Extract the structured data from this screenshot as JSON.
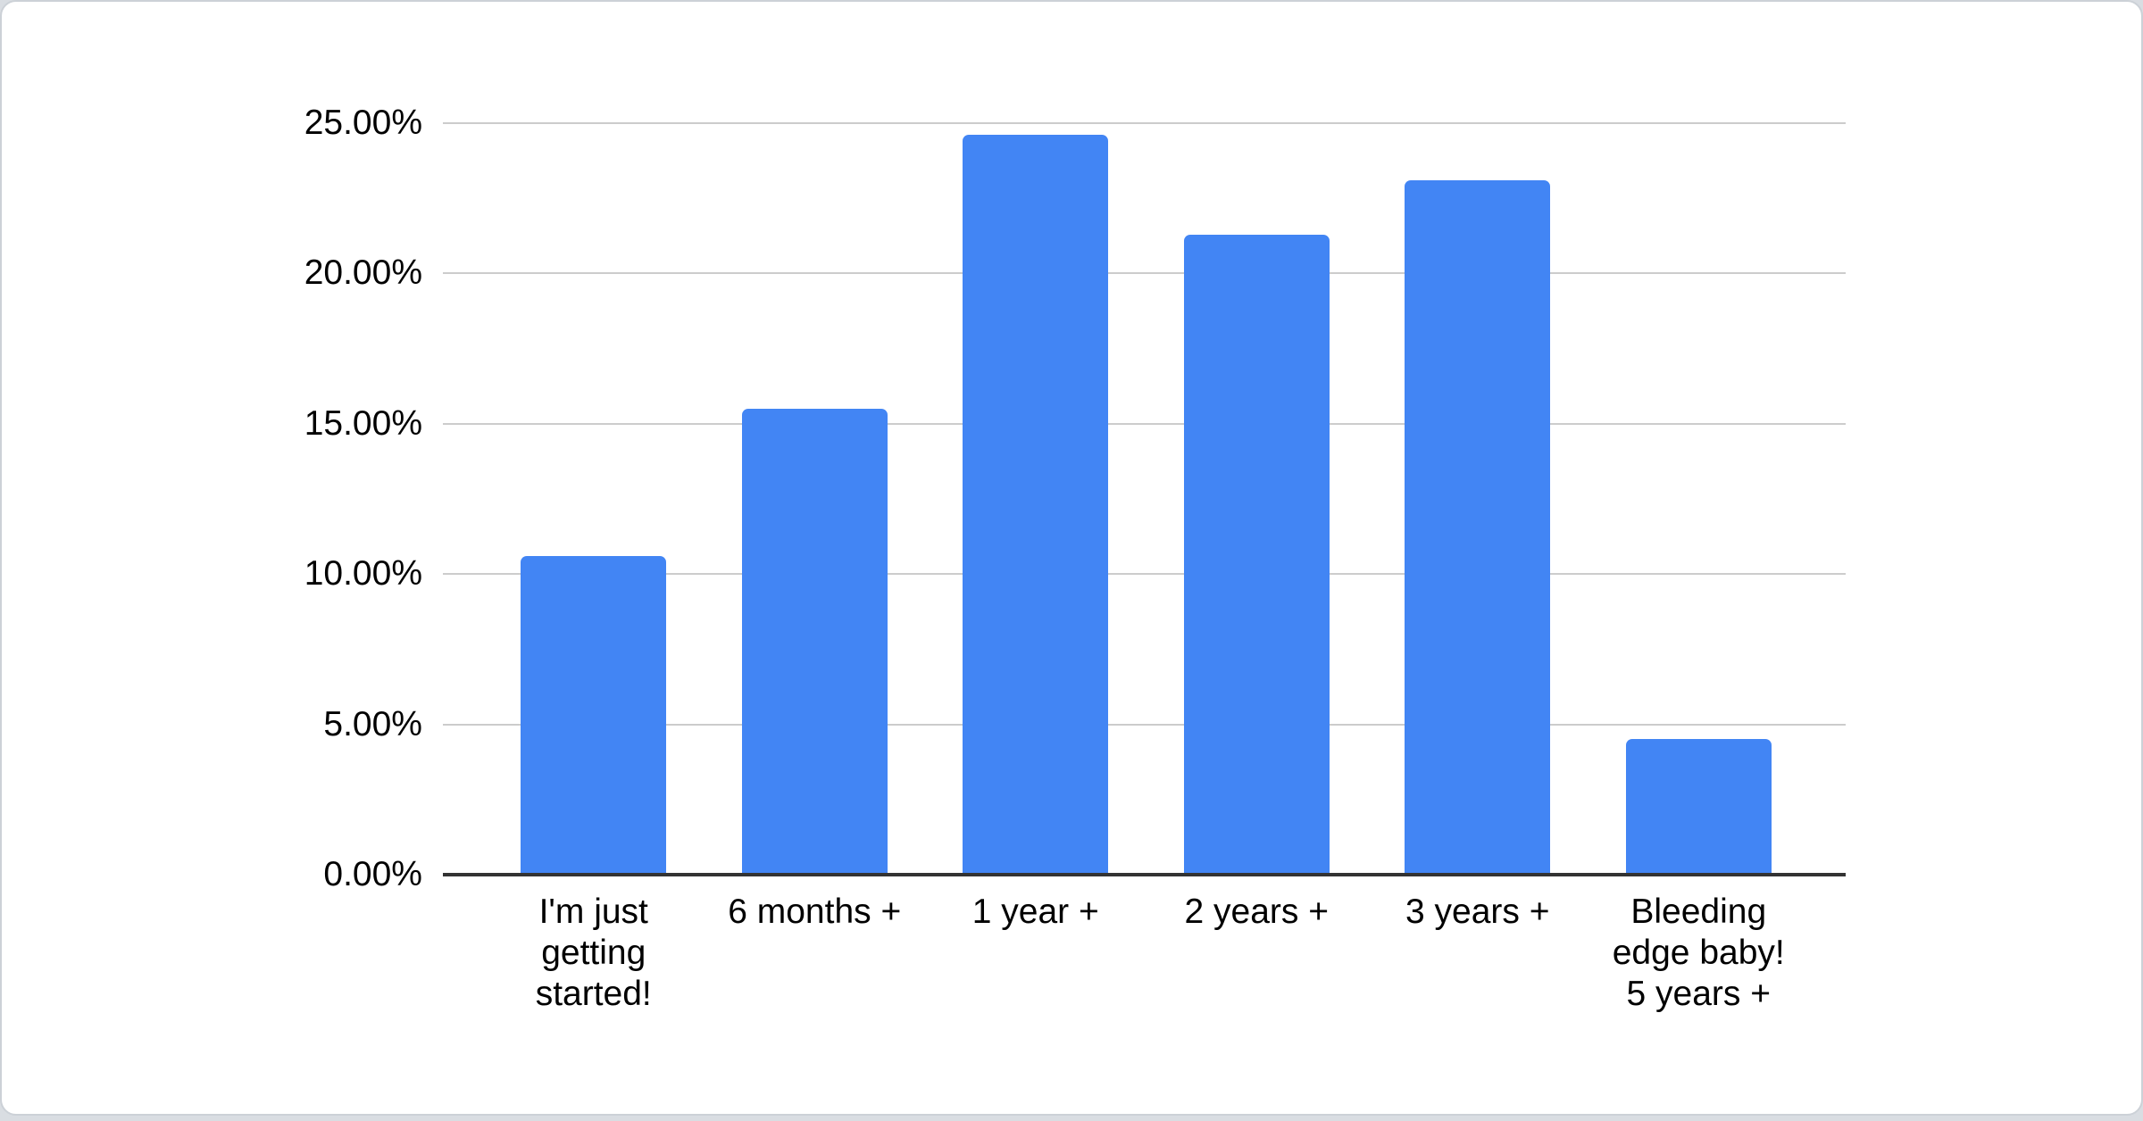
{
  "card": {
    "background": "#ffffff",
    "border_color": "#ccd1d7",
    "page_background": "#d9dde2"
  },
  "chart_data": {
    "type": "bar",
    "title": "",
    "xlabel": "",
    "ylabel": "",
    "categories": [
      "I'm just getting started!",
      "6 months +",
      "1 year +",
      "2 years +",
      "3 years +",
      "Bleeding edge baby! 5 years +"
    ],
    "values": [
      10.6,
      15.5,
      24.6,
      21.3,
      23.1,
      4.5
    ],
    "value_unit": "percent",
    "ylim": [
      0,
      25
    ],
    "yticks": [
      0,
      5,
      10,
      15,
      20,
      25
    ],
    "ytick_labels": [
      "0.00%",
      "5.00%",
      "10.00%",
      "15.00%",
      "20.00%",
      "25.00%"
    ],
    "xtick_display": [
      "I'm just\ngetting\nstarted!",
      "6 months +",
      "1 year +",
      "2 years +",
      "3 years +",
      "Bleeding\nedge baby!\n5 years +"
    ],
    "grid": true,
    "legend": "none",
    "bar_color": "#4285f4",
    "gridline_color": "#cccccc",
    "baseline_color": "#333333",
    "text_color": "#000000"
  }
}
